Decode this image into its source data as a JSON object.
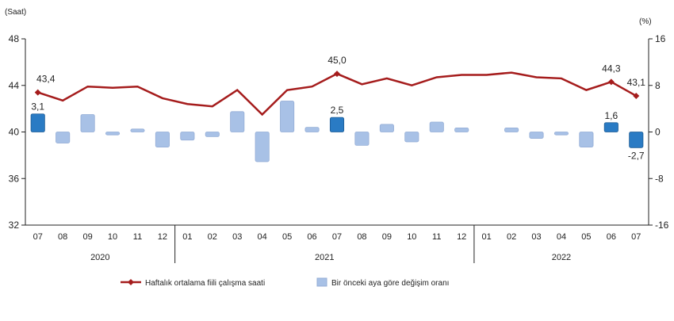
{
  "chart_data": {
    "type": "bar+line",
    "left_axis": {
      "label": "(Saat)",
      "range": [
        32,
        48
      ],
      "ticks": [
        "32",
        "36",
        "40",
        "44",
        "48"
      ]
    },
    "right_axis": {
      "label": "(%)",
      "range": [
        -16,
        16
      ],
      "ticks": [
        "-16",
        "-8",
        "0",
        "8",
        "16"
      ]
    },
    "months": [
      "07",
      "08",
      "09",
      "10",
      "11",
      "12",
      "01",
      "02",
      "03",
      "04",
      "05",
      "06",
      "07",
      "08",
      "09",
      "10",
      "11",
      "12",
      "01",
      "02",
      "03",
      "04",
      "05",
      "06",
      "07"
    ],
    "years": [
      {
        "label": "2020",
        "from": 0,
        "to": 5
      },
      {
        "label": "2021",
        "from": 6,
        "to": 17
      },
      {
        "label": "2022",
        "from": 18,
        "to": 24
      }
    ],
    "series": [
      {
        "name": "Haftalık ortalama fiili çalışma saati",
        "type": "line",
        "axis": "left",
        "color": "#a51c1c",
        "values": [
          43.4,
          42.7,
          43.9,
          43.8,
          43.9,
          42.9,
          42.4,
          42.2,
          43.6,
          41.5,
          43.6,
          43.9,
          45.0,
          44.1,
          44.6,
          44.0,
          44.7,
          44.9,
          44.9,
          45.1,
          44.7,
          44.6,
          43.6,
          44.3,
          43.1
        ],
        "labels": {
          "0": "43,4",
          "12": "45,0",
          "23": "44,3",
          "24": "43,1"
        }
      },
      {
        "name": "Bir önceki aya göre değişim oranı",
        "type": "bar",
        "axis": "right",
        "color": "#a8c1e6",
        "highlight_color": "#2a7bc4",
        "values": [
          3.1,
          -1.9,
          3.0,
          -0.5,
          0.5,
          -2.6,
          -1.4,
          -0.8,
          3.5,
          -5.1,
          5.3,
          0.8,
          2.5,
          -2.3,
          1.3,
          -1.7,
          1.7,
          0.7,
          0.0,
          0.7,
          -1.1,
          -0.5,
          -2.6,
          1.6,
          -2.7
        ],
        "highlighted": [
          0,
          12,
          23,
          24
        ],
        "labels": {
          "0": "3,1",
          "12": "2,5",
          "23": "1,6",
          "24": "-2,7"
        }
      }
    ],
    "legend_placement": "bottom",
    "grid": false
  }
}
